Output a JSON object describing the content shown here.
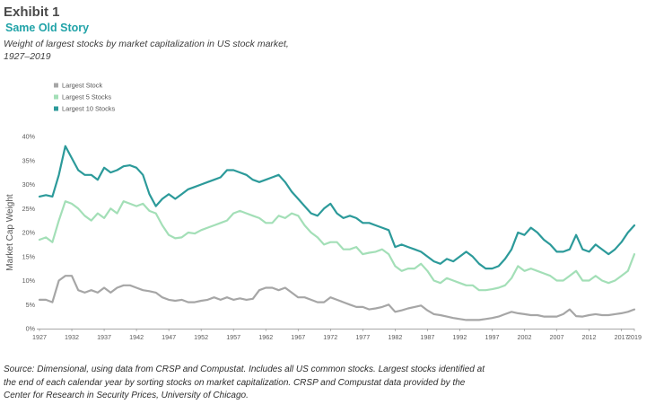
{
  "header": {
    "exhibit": "Exhibit 1",
    "subtitle": "Same Old Story",
    "description_line1": "Weight of largest stocks by market capitalization in US stock market,",
    "description_line2": "1927–2019"
  },
  "source": {
    "line1": "Source: Dimensional, using data from CRSP and Compustat. Includes all US common stocks. Largest stocks identified at",
    "line2": "the end of each calendar year by sorting stocks on market capitalization. CRSP and Compustat data provided by the",
    "line3": " Center for Research in Security Prices, University of Chicago."
  },
  "chart_data": {
    "type": "line",
    "title": "",
    "xlabel": "",
    "ylabel": "Market Cap Weight",
    "xlim": [
      1927,
      2019
    ],
    "ylim": [
      0,
      40
    ],
    "x_ticks": [
      1927,
      1932,
      1937,
      1942,
      1947,
      1952,
      1957,
      1962,
      1967,
      1972,
      1977,
      1982,
      1987,
      1992,
      1997,
      2002,
      2007,
      2012,
      2017,
      2019
    ],
    "y_ticks": [
      0,
      5,
      10,
      15,
      20,
      25,
      30,
      35,
      40
    ],
    "y_tick_labels": [
      "0%",
      "5%",
      "10%",
      "15%",
      "20%",
      "25%",
      "30%",
      "35%",
      "40%"
    ],
    "grid": false,
    "legend_position": "top-left",
    "x": [
      1927,
      1928,
      1929,
      1930,
      1931,
      1932,
      1933,
      1934,
      1935,
      1936,
      1937,
      1938,
      1939,
      1940,
      1941,
      1942,
      1943,
      1944,
      1945,
      1946,
      1947,
      1948,
      1949,
      1950,
      1951,
      1952,
      1953,
      1954,
      1955,
      1956,
      1957,
      1958,
      1959,
      1960,
      1961,
      1962,
      1963,
      1964,
      1965,
      1966,
      1967,
      1968,
      1969,
      1970,
      1971,
      1972,
      1973,
      1974,
      1975,
      1976,
      1977,
      1978,
      1979,
      1980,
      1981,
      1982,
      1983,
      1984,
      1985,
      1986,
      1987,
      1988,
      1989,
      1990,
      1991,
      1992,
      1993,
      1994,
      1995,
      1996,
      1997,
      1998,
      1999,
      2000,
      2001,
      2002,
      2003,
      2004,
      2005,
      2006,
      2007,
      2008,
      2009,
      2010,
      2011,
      2012,
      2013,
      2014,
      2015,
      2016,
      2017,
      2018,
      2019
    ],
    "series": [
      {
        "name": "Largest Stock",
        "color": "#a6a6a6",
        "values": [
          6.0,
          6.0,
          5.5,
          10.0,
          11.0,
          11.0,
          8.0,
          7.5,
          8.0,
          7.5,
          8.5,
          7.5,
          8.5,
          9.0,
          9.0,
          8.5,
          8.0,
          7.8,
          7.5,
          6.5,
          6.0,
          5.8,
          6.0,
          5.5,
          5.5,
          5.8,
          6.0,
          6.5,
          6.0,
          6.5,
          6.0,
          6.3,
          6.0,
          6.2,
          8.0,
          8.5,
          8.5,
          8.0,
          8.5,
          7.5,
          6.5,
          6.5,
          6.0,
          5.5,
          5.5,
          6.5,
          6.0,
          5.5,
          5.0,
          4.5,
          4.5,
          4.0,
          4.2,
          4.5,
          5.0,
          3.5,
          3.8,
          4.2,
          4.5,
          4.8,
          3.8,
          3.0,
          2.8,
          2.5,
          2.2,
          2.0,
          1.8,
          1.8,
          1.8,
          2.0,
          2.2,
          2.5,
          3.0,
          3.5,
          3.2,
          3.0,
          2.8,
          2.8,
          2.5,
          2.5,
          2.5,
          3.0,
          4.0,
          2.6,
          2.5,
          2.8,
          3.0,
          2.8,
          2.8,
          3.0,
          3.2,
          3.5,
          4.0
        ]
      },
      {
        "name": "Largest 5 Stocks",
        "color": "#a3dfb7",
        "values": [
          18.5,
          19.0,
          18.0,
          22.5,
          26.5,
          26.0,
          25.0,
          23.5,
          22.5,
          24.0,
          23.0,
          25.0,
          24.0,
          26.5,
          26.0,
          25.5,
          26.0,
          24.5,
          24.0,
          21.5,
          19.5,
          18.8,
          19.0,
          20.0,
          19.8,
          20.5,
          21.0,
          21.5,
          22.0,
          22.5,
          24.0,
          24.5,
          24.0,
          23.5,
          23.0,
          22.0,
          22.0,
          23.5,
          23.0,
          24.0,
          23.5,
          21.5,
          20.0,
          19.0,
          17.5,
          18.0,
          18.0,
          16.5,
          16.5,
          17.0,
          15.5,
          15.8,
          16.0,
          16.5,
          15.5,
          13.0,
          12.0,
          12.5,
          12.5,
          13.5,
          12.0,
          10.0,
          9.5,
          10.5,
          10.0,
          9.5,
          9.0,
          9.0,
          8.0,
          8.0,
          8.2,
          8.5,
          9.0,
          10.5,
          13.0,
          12.0,
          12.5,
          12.0,
          11.5,
          11.0,
          10.0,
          10.0,
          11.0,
          12.0,
          10.0,
          10.0,
          11.0,
          10.0,
          9.5,
          10.0,
          11.0,
          12.0,
          15.5
        ]
      },
      {
        "name": "Largest 10 Stocks",
        "color": "#2c9a9a",
        "values": [
          27.5,
          27.8,
          27.5,
          32.0,
          38.0,
          35.5,
          33.0,
          32.0,
          32.0,
          31.0,
          33.5,
          32.5,
          33.0,
          33.8,
          34.0,
          33.5,
          32.0,
          28.0,
          25.5,
          27.0,
          28.0,
          27.0,
          28.0,
          29.0,
          29.5,
          30.0,
          30.5,
          31.0,
          31.5,
          33.0,
          33.0,
          32.5,
          32.0,
          31.0,
          30.5,
          31.0,
          31.5,
          32.0,
          30.5,
          28.5,
          27.0,
          25.5,
          24.0,
          23.5,
          25.0,
          26.0,
          24.0,
          23.0,
          23.5,
          23.0,
          22.0,
          22.0,
          21.5,
          21.0,
          20.5,
          17.0,
          17.5,
          17.0,
          16.5,
          16.0,
          15.0,
          14.0,
          13.5,
          14.5,
          14.0,
          15.0,
          16.0,
          15.0,
          13.5,
          12.5,
          12.5,
          13.0,
          14.5,
          16.5,
          20.0,
          19.5,
          21.0,
          20.0,
          18.5,
          17.5,
          16.0,
          16.0,
          16.5,
          19.5,
          16.5,
          16.0,
          17.5,
          16.5,
          15.5,
          16.5,
          18.0,
          20.0,
          21.5
        ]
      }
    ]
  }
}
